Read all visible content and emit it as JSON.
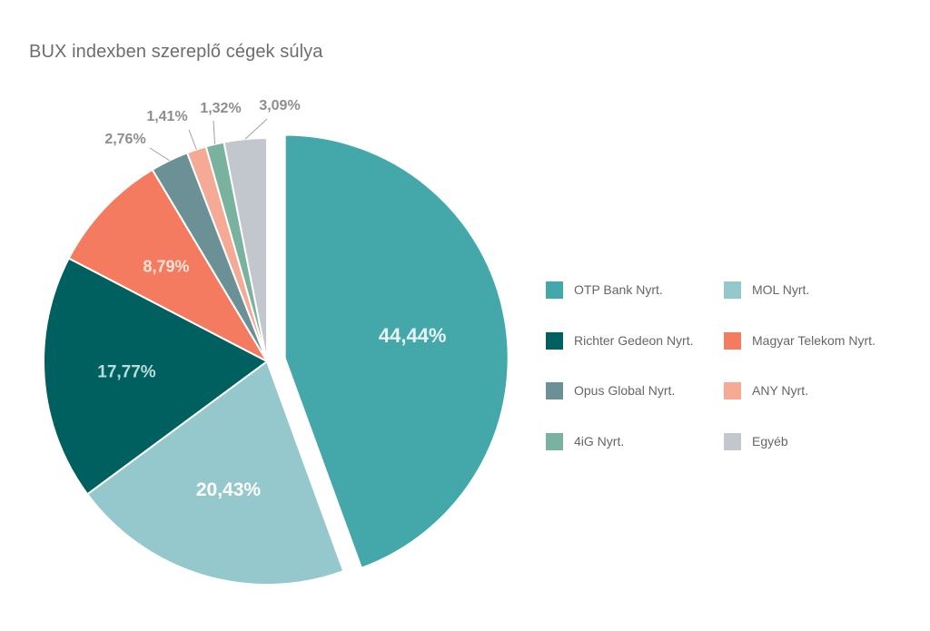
{
  "chart_data": {
    "type": "pie",
    "title": "BUX indexben szereplő cégek súlya",
    "slices": [
      {
        "name": "OTP Bank Nyrt.",
        "value": 44.44,
        "label": "44,44%",
        "color": "#44a8aa",
        "exploded": true
      },
      {
        "name": "MOL Nyrt.",
        "value": 20.43,
        "label": "20,43%",
        "color": "#94c8cc"
      },
      {
        "name": "Richter Gedeon Nyrt.",
        "value": 17.77,
        "label": "17,77%",
        "color": "#005f5f"
      },
      {
        "name": "Magyar Telekom Nyrt.",
        "value": 8.79,
        "label": "8,79%",
        "color": "#f47b5f"
      },
      {
        "name": "Opus Global Nyrt.",
        "value": 2.76,
        "label": "2,76%",
        "color": "#6b9196"
      },
      {
        "name": "ANY Nyrt.",
        "value": 1.41,
        "label": "1,41%",
        "color": "#f4aa94"
      },
      {
        "name": "4iG Nyrt.",
        "value": 1.32,
        "label": "1,32%",
        "color": "#7ab2a0"
      },
      {
        "name": "Egyéb",
        "value": 3.09,
        "label": "3,09%",
        "color": "#c2c7cd"
      }
    ],
    "legend_placement": "right",
    "legend_order": [
      "OTP Bank Nyrt.",
      "MOL Nyrt.",
      "Richter Gedeon Nyrt.",
      "Magyar Telekom Nyrt.",
      "Opus Global Nyrt.",
      "ANY Nyrt.",
      "4iG Nyrt.",
      "Egyéb"
    ]
  }
}
